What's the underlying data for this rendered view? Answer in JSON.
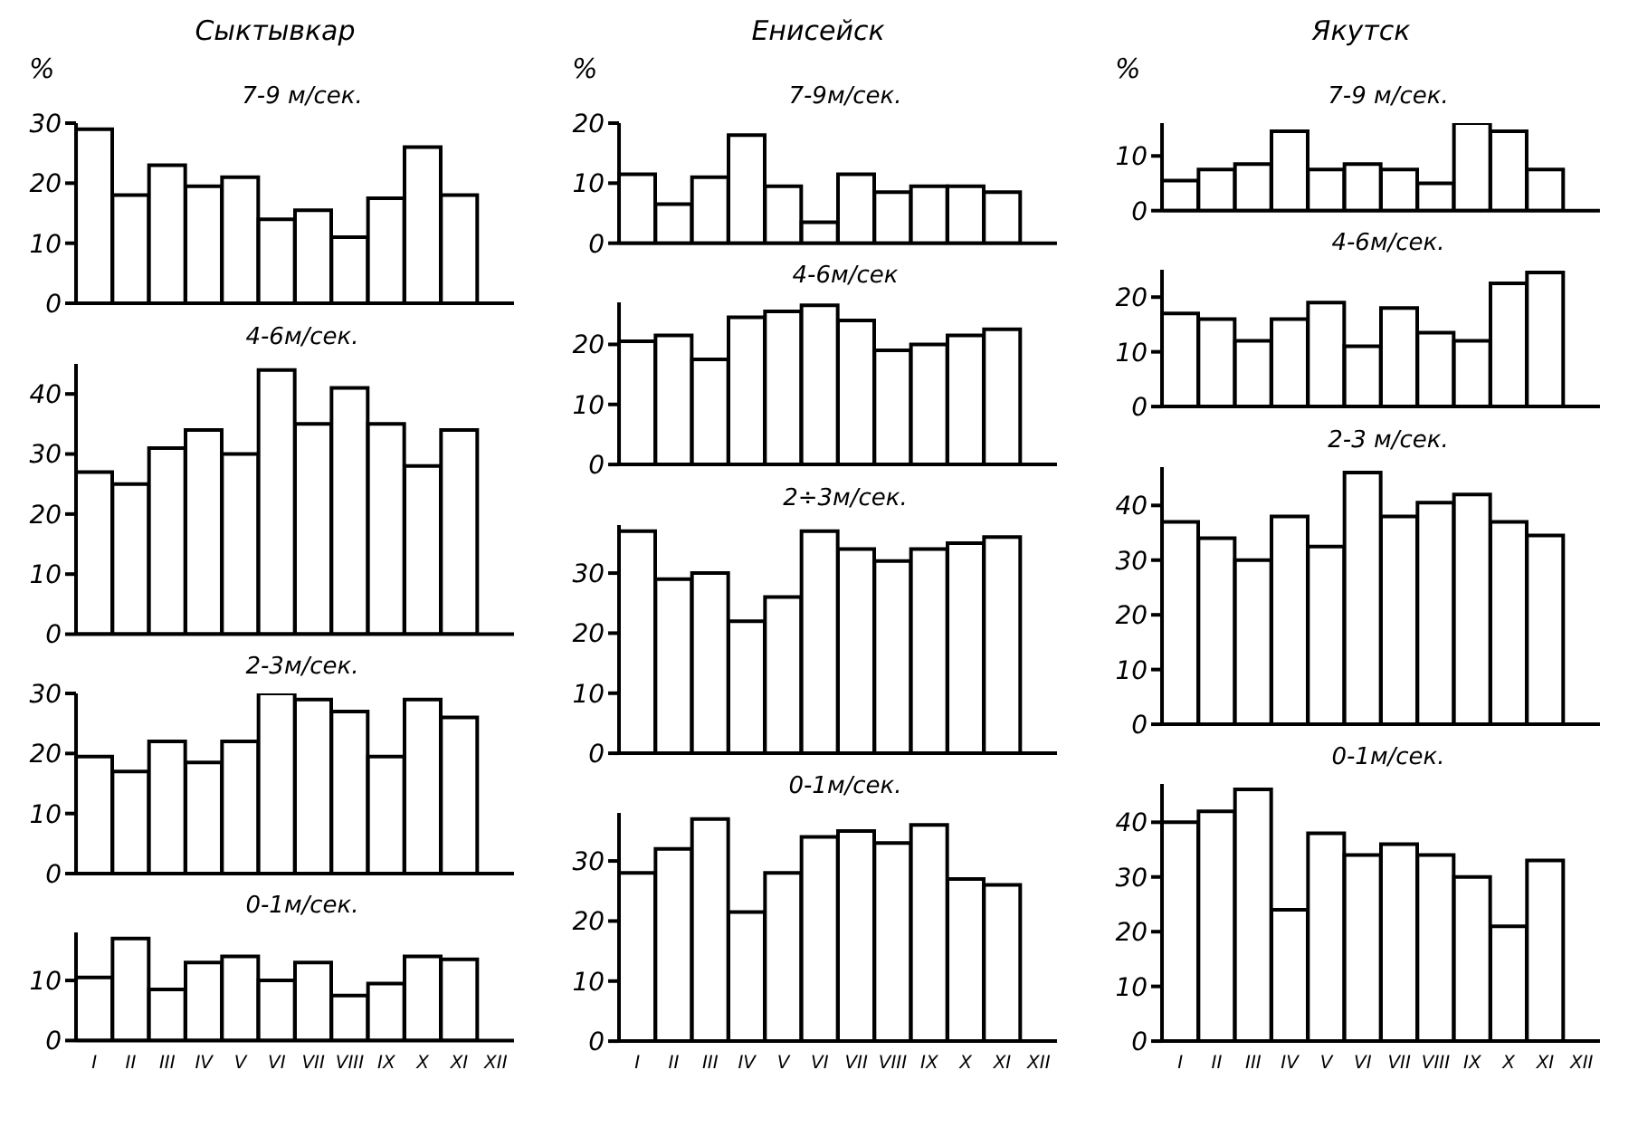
{
  "chart_data": [
    {
      "type": "bar",
      "title": "Сыктывкар",
      "ylabel": "%",
      "subtitle": "7-9 м/сек.",
      "categories": [
        null,
        null,
        null,
        null,
        null,
        null,
        null,
        null,
        null,
        null,
        null,
        null
      ],
      "values": [
        29,
        18,
        23,
        19.5,
        21,
        14,
        15.5,
        11,
        17.5,
        26,
        18,
        null
      ],
      "color": "#ffffff",
      "ylim": [
        0,
        30
      ],
      "yticks": [
        0,
        10,
        20,
        30
      ],
      "tick_labels": "y"
    },
    {
      "type": "bar",
      "subtitle": "4-6м/сек.",
      "categories": [
        null,
        null,
        null,
        null,
        null,
        null,
        null,
        null,
        null,
        null,
        null,
        null
      ],
      "values": [
        27,
        25,
        31,
        34,
        30,
        44,
        35,
        41,
        35,
        28,
        34,
        null
      ],
      "color": "#ffffff",
      "ylim": [
        0,
        45
      ],
      "yticks": [
        0,
        10,
        20,
        30,
        40
      ],
      "tick_labels": "y"
    },
    {
      "type": "bar",
      "subtitle": "2-3м/сек.",
      "categories": [
        null,
        null,
        null,
        null,
        null,
        null,
        null,
        null,
        null,
        null,
        null,
        null
      ],
      "values": [
        19.5,
        17,
        22,
        18.5,
        22,
        30,
        29,
        27,
        19.5,
        29,
        26,
        null
      ],
      "color": "#ffffff",
      "ylim": [
        0,
        30
      ],
      "yticks": [
        0,
        10,
        20,
        30
      ],
      "tick_labels": "y"
    },
    {
      "type": "bar",
      "subtitle": "0-1м/сек.",
      "categories": [
        "I",
        "II",
        "III",
        "IV",
        "V",
        "VI",
        "VII",
        "VIII",
        "IX",
        "X",
        "XI",
        "XII"
      ],
      "values": [
        10.5,
        17,
        8.5,
        13,
        14,
        10,
        13,
        7.5,
        9.5,
        14,
        13.5,
        null
      ],
      "color": "#ffffff",
      "ylim": [
        0,
        18
      ],
      "yticks": [
        0,
        10
      ]
    },
    {
      "type": "bar",
      "title": "Енисейск",
      "ylabel": "%",
      "subtitle": "7-9м/сек.",
      "categories": [
        null,
        null,
        null,
        null,
        null,
        null,
        null,
        null,
        null,
        null,
        null,
        null
      ],
      "values": [
        11.5,
        6.5,
        11,
        18,
        9.5,
        3.5,
        11.5,
        8.5,
        9.5,
        9.5,
        8.5,
        null
      ],
      "color": "#ffffff",
      "ylim": [
        0,
        20
      ],
      "yticks": [
        0,
        10,
        20
      ],
      "tick_labels": "y"
    },
    {
      "type": "bar",
      "subtitle": "4-6м/сек",
      "categories": [
        null,
        null,
        null,
        null,
        null,
        null,
        null,
        null,
        null,
        null,
        null,
        null
      ],
      "values": [
        20.5,
        21.5,
        17.5,
        24.5,
        25.5,
        26.5,
        24,
        19,
        20,
        21.5,
        22.5,
        null
      ],
      "color": "#ffffff",
      "ylim": [
        0,
        27
      ],
      "yticks": [
        0,
        10,
        20
      ],
      "tick_labels": "y"
    },
    {
      "type": "bar",
      "subtitle": "2÷3м/сек.",
      "categories": [
        null,
        null,
        null,
        null,
        null,
        null,
        null,
        null,
        null,
        null,
        null,
        null
      ],
      "values": [
        37,
        29,
        30,
        22,
        26,
        37,
        34,
        32,
        34,
        35,
        36,
        null
      ],
      "color": "#ffffff",
      "ylim": [
        0,
        38
      ],
      "yticks": [
        0,
        10,
        20,
        30
      ],
      "tick_labels": "y"
    },
    {
      "type": "bar",
      "subtitle": "0-1м/сек.",
      "categories": [
        "I",
        "II",
        "III",
        "IV",
        "V",
        "VI",
        "VII",
        "VIII",
        "IX",
        "X",
        "XI",
        "XII"
      ],
      "values": [
        28,
        32,
        37,
        21.5,
        28,
        34,
        35,
        33,
        36,
        27,
        26,
        null
      ],
      "color": "#ffffff",
      "ylim": [
        0,
        38
      ],
      "yticks": [
        0,
        10,
        20,
        30
      ]
    },
    {
      "type": "bar",
      "title": "Якутск",
      "ylabel": "%",
      "subtitle": "7-9 м/сек.",
      "categories": [
        null,
        null,
        null,
        null,
        null,
        null,
        null,
        null,
        null,
        null,
        null,
        null
      ],
      "values": [
        5.5,
        7.5,
        8.5,
        14.5,
        7.5,
        8.5,
        7.5,
        5,
        16,
        14.5,
        7.5,
        null
      ],
      "color": "#ffffff",
      "ylim": [
        0,
        16
      ],
      "yticks": [
        0,
        10
      ],
      "tick_labels": "y"
    },
    {
      "type": "bar",
      "subtitle": "4-6м/сек.",
      "categories": [
        null,
        null,
        null,
        null,
        null,
        null,
        null,
        null,
        null,
        null,
        null,
        null
      ],
      "values": [
        17,
        16,
        12,
        16,
        19,
        11,
        18,
        13.5,
        12,
        22.5,
        24.5,
        null
      ],
      "color": "#ffffff",
      "ylim": [
        0,
        25
      ],
      "yticks": [
        0,
        10,
        20
      ],
      "tick_labels": "y"
    },
    {
      "type": "bar",
      "subtitle": "2-3 м/сек.",
      "categories": [
        null,
        null,
        null,
        null,
        null,
        null,
        null,
        null,
        null,
        null,
        null,
        null
      ],
      "values": [
        37,
        34,
        30,
        38,
        32.5,
        46,
        38,
        40.5,
        42,
        37,
        34.5,
        null
      ],
      "color": "#ffffff",
      "ylim": [
        0,
        47
      ],
      "yticks": [
        0,
        10,
        20,
        30,
        40
      ],
      "tick_labels": "y"
    },
    {
      "type": "bar",
      "subtitle": "0-1м/сек.",
      "categories": [
        "I",
        "II",
        "III",
        "IV",
        "V",
        "VI",
        "VII",
        "VIII",
        "IX",
        "X",
        "XI",
        "XII"
      ],
      "values": [
        40,
        42,
        46,
        24,
        38,
        34,
        36,
        34,
        30,
        21,
        33,
        null
      ],
      "color": "#ffffff",
      "ylim": [
        0,
        47
      ],
      "yticks": [
        0,
        10,
        20,
        30,
        40
      ]
    }
  ]
}
